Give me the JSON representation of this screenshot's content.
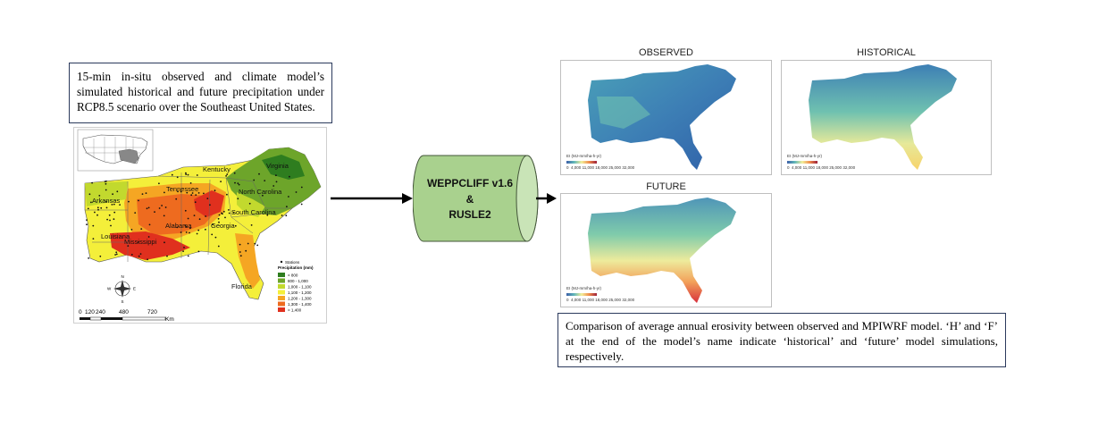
{
  "left_description": "15-min in-situ observed and climate model’s simulated historical and future precipitation under RCP8.5 scenario over the Southeast United States.",
  "right_description": "Comparison of average annual erosivity between observed and MPIWRF model. ‘H’ and ‘F’ at the end of the model’s name indicate ‘historical’ and ‘future’ model simulations, respectively.",
  "model_box": {
    "line1": "WEPPCLIFF v1.6",
    "line2": "&",
    "line3": "RUSLE2"
  },
  "precip_map": {
    "states": [
      "Kentucky",
      "Virginia",
      "Tennessee",
      "North Carolina",
      "Arkansas",
      "South Carolina",
      "Alabama",
      "Georgia",
      "Louisiana",
      "Mississippi",
      "Florida"
    ],
    "legend_title": "Precipitation (mm)",
    "stations_label": "Stations",
    "legend_classes": [
      "< 800",
      "800 - 1,000",
      "1,000 - 1,100",
      "1,100 - 1,200",
      "1,200 - 1,300",
      "1,300 - 1,400",
      "> 1,400"
    ],
    "legend_colors": [
      "#2e7d1f",
      "#6da52a",
      "#c2d92e",
      "#f4ef3a",
      "#f5a623",
      "#ee6b1f",
      "#e0301e"
    ],
    "compass": {
      "n": "N",
      "s": "S",
      "e": "E",
      "w": "W"
    },
    "scale_labels": [
      "0",
      "120",
      "240",
      "480",
      "720"
    ],
    "scale_unit": "Km"
  },
  "erosivity_panels": {
    "observed_title": "OBSERVED",
    "historical_title": "HISTORICAL",
    "future_title": "FUTURE",
    "legend_unit": "EI (MJ-mm/ha-h-yr)",
    "legend_ticks": [
      "0",
      "4,000",
      "11,000",
      "18,000",
      "25,000",
      "32,000"
    ]
  }
}
